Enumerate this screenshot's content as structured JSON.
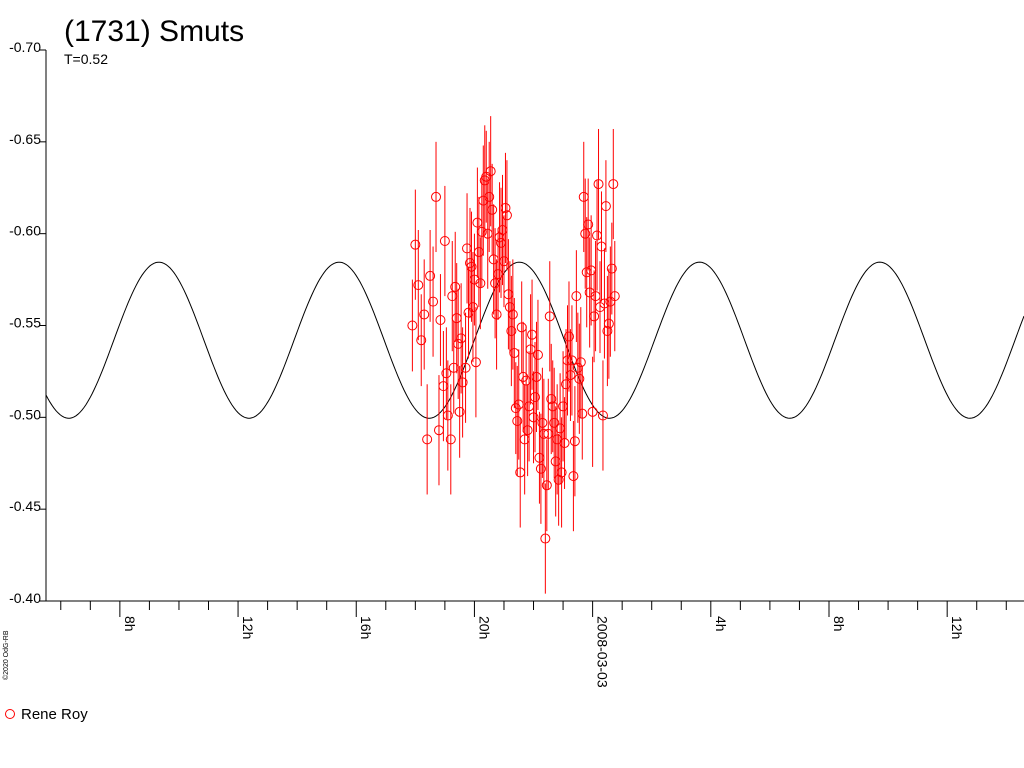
{
  "chart_data": {
    "type": "scatter",
    "title": "(1731) Smuts",
    "subtitle": "T=0.52",
    "y_axis_reversed": true,
    "ylim": [
      -0.4,
      -0.7
    ],
    "y_ticks": [
      "-0.70",
      "-0.65",
      "-0.60",
      "-0.55",
      "-0.50",
      "-0.45",
      "-0.40"
    ],
    "y_tick_values": [
      -0.7,
      -0.65,
      -0.6,
      -0.55,
      -0.5,
      -0.45,
      -0.4
    ],
    "x_unit": "hours",
    "xlim": [
      5.5,
      38.6
    ],
    "x_ticks": [
      {
        "value": 8,
        "label": "8h"
      },
      {
        "value": 12,
        "label": "12h"
      },
      {
        "value": 16,
        "label": "16h"
      },
      {
        "value": 20,
        "label": "20h"
      },
      {
        "value": 24,
        "label": "2008-03-03"
      },
      {
        "value": 28,
        "label": "4h"
      },
      {
        "value": 32,
        "label": "8h"
      },
      {
        "value": 36,
        "label": "12h"
      }
    ],
    "model_curve": {
      "type": "line",
      "color": "#000000",
      "mean": -0.542,
      "amplitude": 0.0425,
      "period_hours": 6.1,
      "peak_hour": 27.62
    },
    "series": [
      {
        "name": "Rene Roy",
        "color": "#ff0000",
        "marker": "open-circle",
        "points": [
          [
            17.9,
            -0.55,
            0.025
          ],
          [
            18.0,
            -0.594,
            0.03
          ],
          [
            18.1,
            -0.572,
            0.03
          ],
          [
            18.2,
            -0.542,
            0.025
          ],
          [
            18.3,
            -0.556,
            0.03
          ],
          [
            18.4,
            -0.488,
            0.03
          ],
          [
            18.5,
            -0.577,
            0.025
          ],
          [
            18.6,
            -0.563,
            0.03
          ],
          [
            18.7,
            -0.62,
            0.03
          ],
          [
            18.8,
            -0.493,
            0.03
          ],
          [
            18.85,
            -0.553,
            0.025
          ],
          [
            18.95,
            -0.517,
            0.03
          ],
          [
            19.0,
            -0.596,
            0.03
          ],
          [
            19.05,
            -0.524,
            0.025
          ],
          [
            19.1,
            -0.501,
            0.03
          ],
          [
            19.2,
            -0.488,
            0.03
          ],
          [
            19.25,
            -0.566,
            0.03
          ],
          [
            19.3,
            -0.527,
            0.025
          ],
          [
            19.35,
            -0.571,
            0.03
          ],
          [
            19.4,
            -0.554,
            0.03
          ],
          [
            19.45,
            -0.54,
            0.03
          ],
          [
            19.5,
            -0.503,
            0.025
          ],
          [
            19.55,
            -0.543,
            0.03
          ],
          [
            19.6,
            -0.519,
            0.03
          ],
          [
            19.7,
            -0.527,
            0.03
          ],
          [
            19.75,
            -0.592,
            0.03
          ],
          [
            19.8,
            -0.557,
            0.025
          ],
          [
            19.85,
            -0.584,
            0.03
          ],
          [
            19.9,
            -0.582,
            0.03
          ],
          [
            19.95,
            -0.56,
            0.03
          ],
          [
            20.0,
            -0.575,
            0.025
          ],
          [
            20.05,
            -0.53,
            0.03
          ],
          [
            20.1,
            -0.606,
            0.03
          ],
          [
            20.15,
            -0.59,
            0.03
          ],
          [
            20.2,
            -0.573,
            0.025
          ],
          [
            20.25,
            -0.601,
            0.03
          ],
          [
            20.3,
            -0.618,
            0.03
          ],
          [
            20.35,
            -0.629,
            0.03
          ],
          [
            20.4,
            -0.631,
            0.025
          ],
          [
            20.45,
            -0.6,
            0.03
          ],
          [
            20.5,
            -0.62,
            0.03
          ],
          [
            20.55,
            -0.634,
            0.03
          ],
          [
            20.6,
            -0.613,
            0.025
          ],
          [
            20.65,
            -0.586,
            0.03
          ],
          [
            20.7,
            -0.573,
            0.03
          ],
          [
            20.75,
            -0.556,
            0.03
          ],
          [
            20.8,
            -0.578,
            0.025
          ],
          [
            20.85,
            -0.598,
            0.03
          ],
          [
            20.9,
            -0.595,
            0.03
          ],
          [
            20.95,
            -0.602,
            0.03
          ],
          [
            21.0,
            -0.585,
            0.025
          ],
          [
            21.05,
            -0.614,
            0.03
          ],
          [
            21.1,
            -0.61,
            0.03
          ],
          [
            21.15,
            -0.567,
            0.03
          ],
          [
            21.2,
            -0.56,
            0.025
          ],
          [
            21.25,
            -0.547,
            0.03
          ],
          [
            21.3,
            -0.556,
            0.03
          ],
          [
            21.35,
            -0.535,
            0.03
          ],
          [
            21.4,
            -0.505,
            0.025
          ],
          [
            21.45,
            -0.498,
            0.03
          ],
          [
            21.5,
            -0.507,
            0.03
          ],
          [
            21.55,
            -0.47,
            0.03
          ],
          [
            21.6,
            -0.549,
            0.025
          ],
          [
            21.65,
            -0.522,
            0.03
          ],
          [
            21.7,
            -0.488,
            0.03
          ],
          [
            21.75,
            -0.52,
            0.03
          ],
          [
            21.8,
            -0.493,
            0.025
          ],
          [
            21.85,
            -0.506,
            0.03
          ],
          [
            21.9,
            -0.537,
            0.03
          ],
          [
            21.95,
            -0.545,
            0.03
          ],
          [
            22.0,
            -0.5,
            0.025
          ],
          [
            22.05,
            -0.511,
            0.03
          ],
          [
            22.1,
            -0.522,
            0.03
          ],
          [
            22.15,
            -0.534,
            0.03
          ],
          [
            22.2,
            -0.478,
            0.025
          ],
          [
            22.25,
            -0.472,
            0.03
          ],
          [
            22.3,
            -0.497,
            0.03
          ],
          [
            22.35,
            -0.491,
            0.03
          ],
          [
            22.4,
            -0.434,
            0.03
          ],
          [
            22.45,
            -0.463,
            0.025
          ],
          [
            22.5,
            -0.491,
            0.03
          ],
          [
            22.55,
            -0.555,
            0.03
          ],
          [
            22.6,
            -0.51,
            0.03
          ],
          [
            22.65,
            -0.506,
            0.025
          ],
          [
            22.7,
            -0.497,
            0.03
          ],
          [
            22.75,
            -0.476,
            0.03
          ],
          [
            22.8,
            -0.488,
            0.03
          ],
          [
            22.85,
            -0.466,
            0.025
          ],
          [
            22.9,
            -0.494,
            0.03
          ],
          [
            22.95,
            -0.47,
            0.03
          ],
          [
            23.0,
            -0.506,
            0.03
          ],
          [
            23.05,
            -0.486,
            0.025
          ],
          [
            23.1,
            -0.518,
            0.03
          ],
          [
            23.15,
            -0.531,
            0.03
          ],
          [
            23.2,
            -0.544,
            0.03
          ],
          [
            23.25,
            -0.523,
            0.025
          ],
          [
            23.3,
            -0.531,
            0.03
          ],
          [
            23.35,
            -0.468,
            0.03
          ],
          [
            23.4,
            -0.487,
            0.03
          ],
          [
            23.45,
            -0.566,
            0.025
          ],
          [
            23.5,
            -0.527,
            0.03
          ],
          [
            23.55,
            -0.521,
            0.03
          ],
          [
            23.6,
            -0.53,
            0.03
          ],
          [
            23.65,
            -0.502,
            0.025
          ],
          [
            23.7,
            -0.62,
            0.03
          ],
          [
            23.75,
            -0.6,
            0.03
          ],
          [
            23.8,
            -0.579,
            0.03
          ],
          [
            23.85,
            -0.605,
            0.025
          ],
          [
            23.9,
            -0.568,
            0.03
          ],
          [
            23.95,
            -0.58,
            0.03
          ],
          [
            24.0,
            -0.503,
            0.03
          ],
          [
            24.05,
            -0.555,
            0.025
          ],
          [
            24.1,
            -0.566,
            0.03
          ],
          [
            24.15,
            -0.599,
            0.03
          ],
          [
            24.2,
            -0.627,
            0.03
          ],
          [
            24.25,
            -0.56,
            0.025
          ],
          [
            24.3,
            -0.593,
            0.03
          ],
          [
            24.35,
            -0.501,
            0.03
          ],
          [
            24.4,
            -0.562,
            0.03
          ],
          [
            24.45,
            -0.615,
            0.025
          ],
          [
            24.5,
            -0.547,
            0.03
          ],
          [
            24.55,
            -0.551,
            0.03
          ],
          [
            24.6,
            -0.563,
            0.03
          ],
          [
            24.65,
            -0.581,
            0.025
          ],
          [
            24.7,
            -0.627,
            0.03
          ],
          [
            24.75,
            -0.566,
            0.03
          ]
        ]
      }
    ],
    "legend": {
      "position": "bottom-left",
      "entries": [
        "Rene Roy"
      ]
    }
  },
  "credit": "©2020 OdG-RB"
}
